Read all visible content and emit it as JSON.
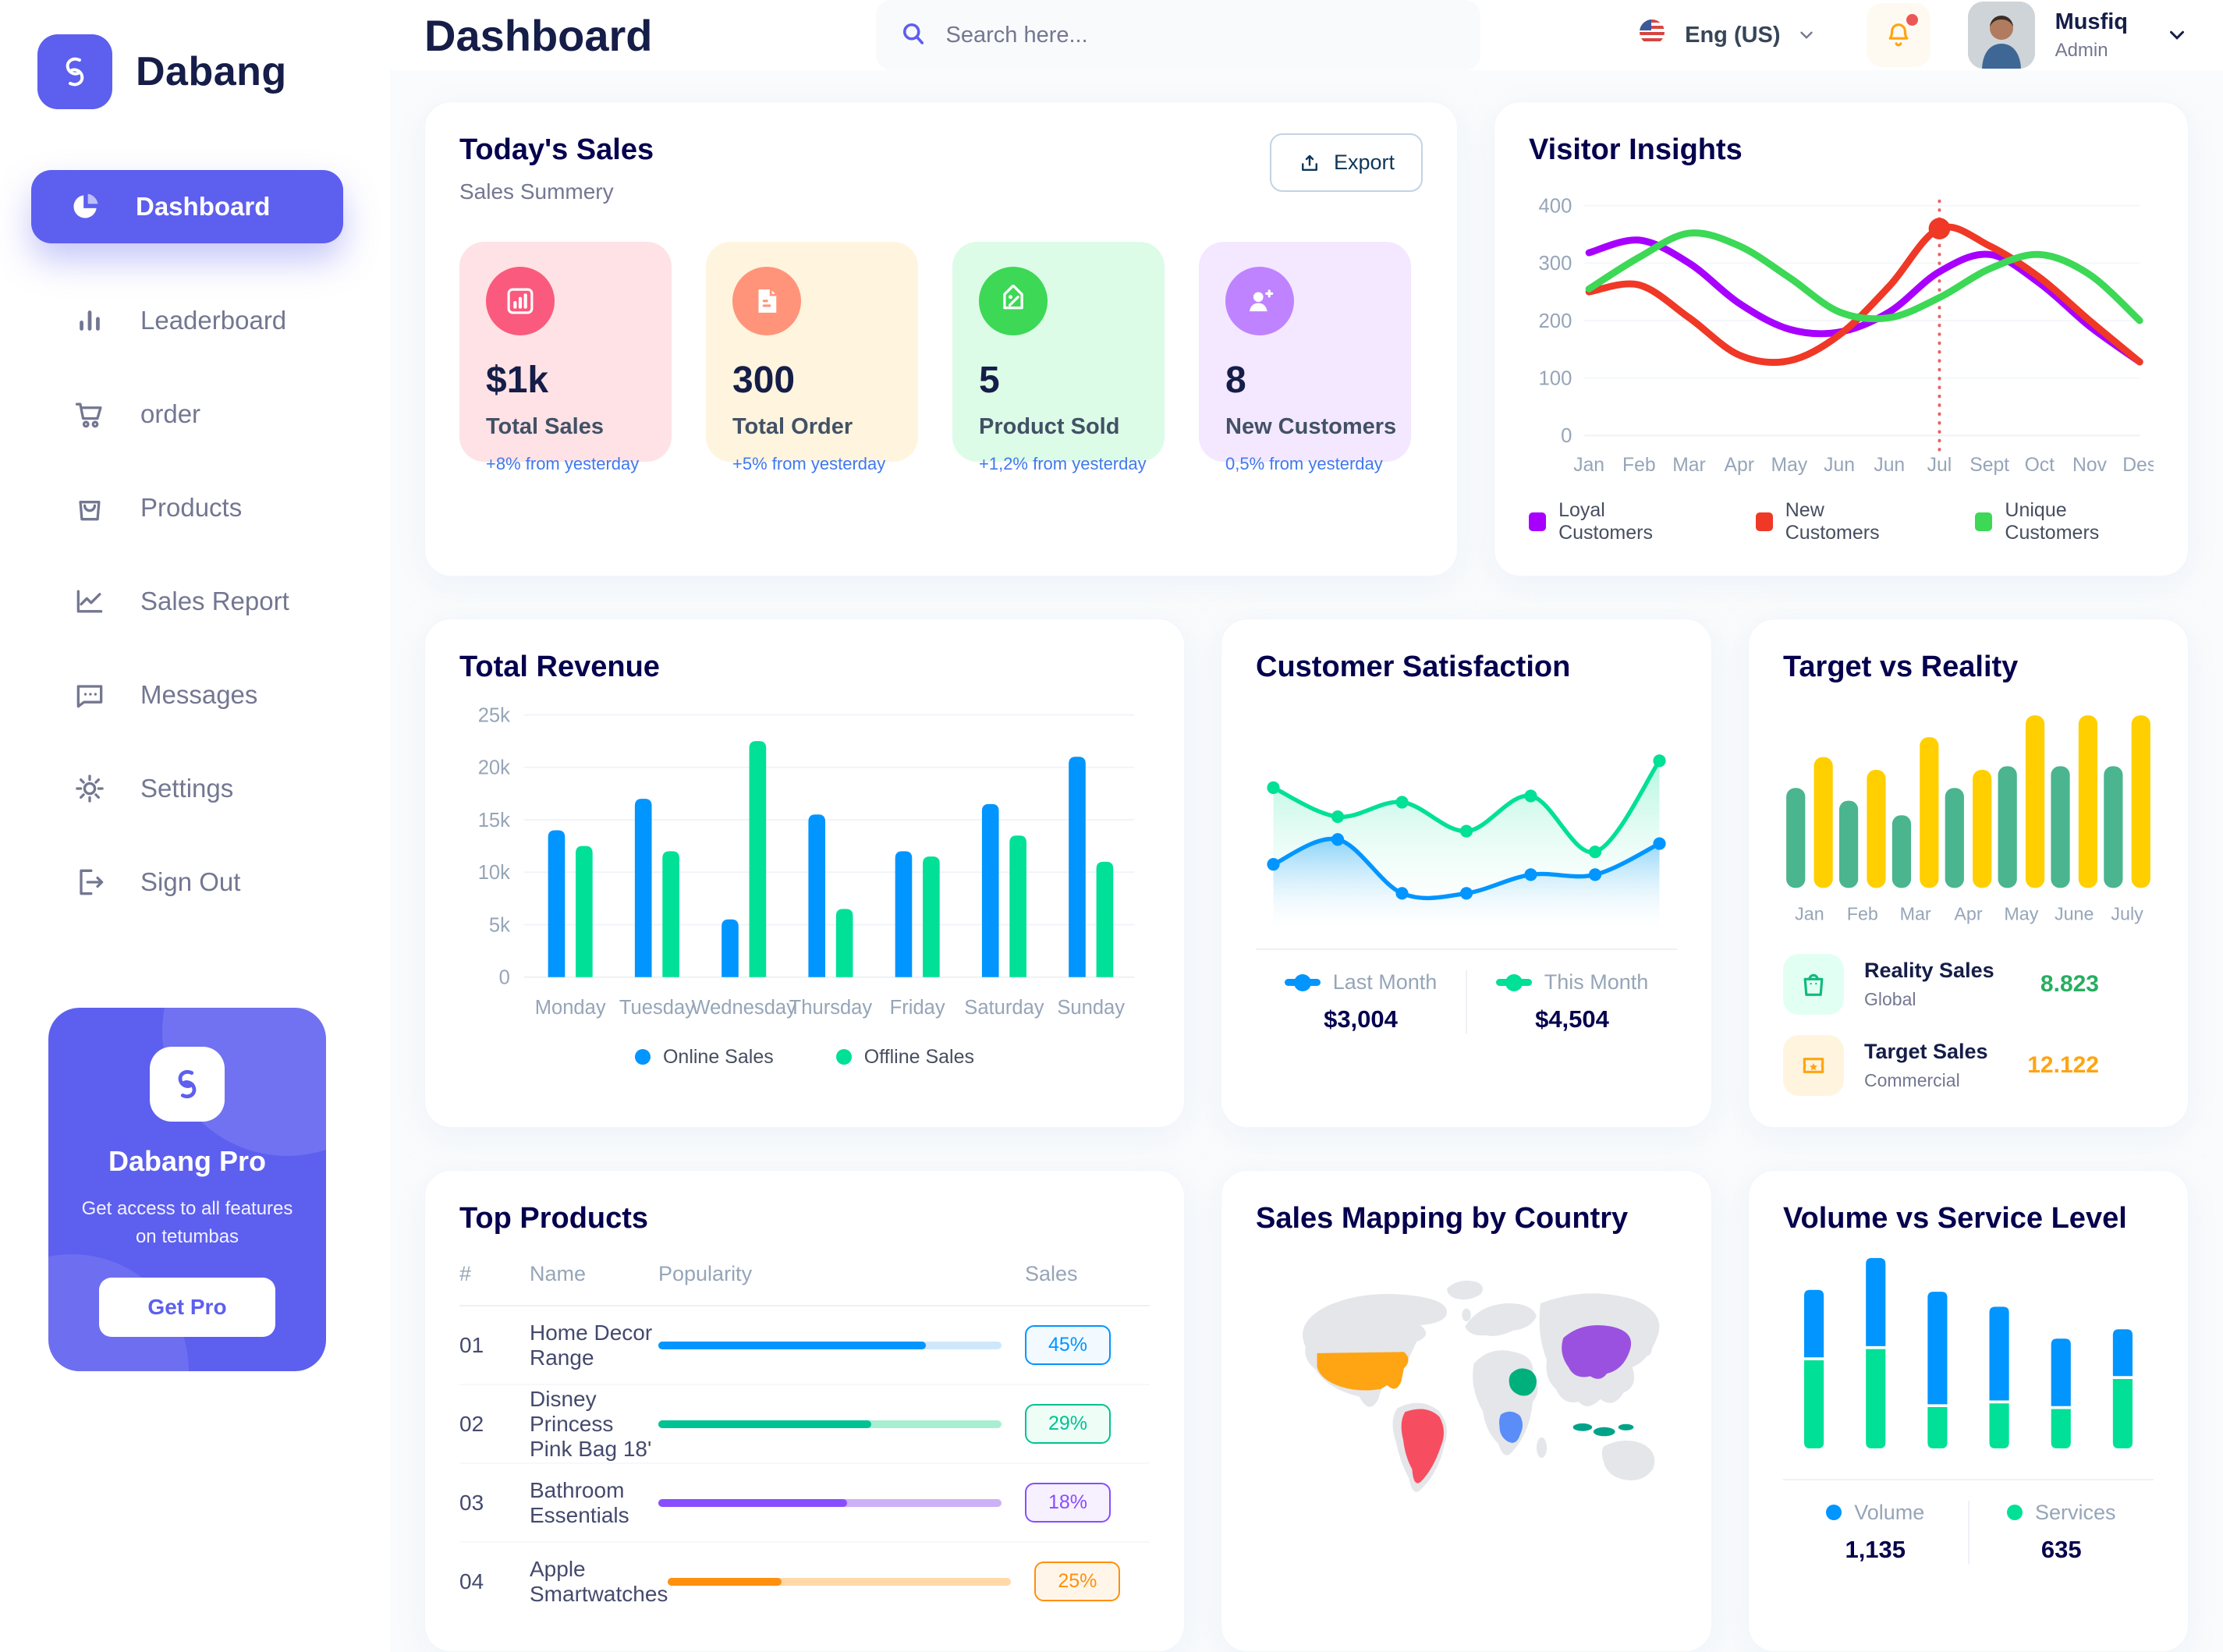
{
  "header": {
    "title": "Dashboard",
    "search_placeholder": "Search here...",
    "language": "Eng (US)",
    "user_name": "Musfiq",
    "user_role": "Admin"
  },
  "sidebar": {
    "brand": "Dabang",
    "items": [
      {
        "label": "Dashboard",
        "icon": "pie-chart",
        "active": true
      },
      {
        "label": "Leaderboard",
        "icon": "bar-chart",
        "active": false
      },
      {
        "label": "order",
        "icon": "cart",
        "active": false
      },
      {
        "label": "Products",
        "icon": "bag",
        "active": false
      },
      {
        "label": "Sales Report",
        "icon": "line-chart",
        "active": false
      },
      {
        "label": "Messages",
        "icon": "chat",
        "active": false
      },
      {
        "label": "Settings",
        "icon": "gear",
        "active": false
      },
      {
        "label": "Sign Out",
        "icon": "sign-out",
        "active": false
      }
    ],
    "pro": {
      "title": "Dabang Pro",
      "text": "Get access to all features on tetumbas",
      "button": "Get Pro"
    }
  },
  "todays_sales": {
    "title": "Today's Sales",
    "subtitle": "Sales Summery",
    "export_label": "Export",
    "cards": [
      {
        "value": "$1k",
        "label": "Total Sales",
        "change": "+8% from yesterday",
        "bg": "#ffe2e5",
        "icon_bg": "#fa5a7d",
        "icon": "bar-stats-icon"
      },
      {
        "value": "300",
        "label": "Total Order",
        "change": "+5% from yesterday",
        "bg": "#fff4de",
        "icon_bg": "#ff947a",
        "icon": "document-icon"
      },
      {
        "value": "5",
        "label": "Product Sold",
        "change": "+1,2% from yesterday",
        "bg": "#dcfce7",
        "icon_bg": "#3cd856",
        "icon": "tag-icon"
      },
      {
        "value": "8",
        "label": "New Customers",
        "change": "0,5% from yesterday",
        "bg": "#f3e8ff",
        "icon_bg": "#bf83ff",
        "icon": "user-plus-icon"
      }
    ]
  },
  "target_details": {
    "rows": [
      {
        "label": "Reality Sales",
        "sub": "Global",
        "value": "8.823",
        "color": "#27ae60",
        "icon_bg": "#e2fff3",
        "icon": "bag-icon"
      },
      {
        "label": "Target Sales",
        "sub": "Commercial",
        "value": "12.122",
        "color": "#ffa412",
        "icon_bg": "#fff4de",
        "icon": "ticket-icon"
      }
    ]
  },
  "top_products": {
    "title": "Top Products",
    "columns": [
      "#",
      "Name",
      "Popularity",
      "Sales"
    ],
    "rows": [
      {
        "num": "01",
        "name": "Home Decor Range",
        "popularity": 78,
        "sales": "45%",
        "color": "#0095ff",
        "track": "#cfe7fb",
        "badge_bg": "#f2f9ff"
      },
      {
        "num": "02",
        "name": "Disney Princess Pink Bag 18'",
        "popularity": 62,
        "sales": "29%",
        "color": "#00c292",
        "track": "#a8efd2",
        "badge_bg": "#effdf7"
      },
      {
        "num": "03",
        "name": "Bathroom Essentials",
        "popularity": 55,
        "sales": "18%",
        "color": "#884dff",
        "track": "#cbb1f7",
        "badge_bg": "#f7f1ff"
      },
      {
        "num": "04",
        "name": "Apple Smartwatches",
        "popularity": 33,
        "sales": "25%",
        "color": "#ff8f0d",
        "track": "#ffd9a8",
        "badge_bg": "#fff6e9"
      }
    ]
  },
  "chart_data": [
    {
      "id": "visitor-insights",
      "type": "line",
      "title": "Visitor Insights",
      "x": [
        "Jan",
        "Feb",
        "Mar",
        "Apr",
        "May",
        "Jun",
        "Jun",
        "Jul",
        "Sept",
        "Oct",
        "Nov",
        "Des"
      ],
      "ylim": [
        0,
        400
      ],
      "yticks": [
        0,
        100,
        200,
        300,
        400
      ],
      "grid": true,
      "legend_position": "bottom",
      "series": [
        {
          "name": "Loyal Customers",
          "color": "#a700ff",
          "values": [
            318,
            340,
            300,
            230,
            185,
            180,
            215,
            285,
            315,
            265,
            190,
            128
          ]
        },
        {
          "name": "New Customers",
          "color": "#ef3826",
          "values": [
            250,
            262,
            205,
            140,
            130,
            175,
            260,
            360,
            330,
            275,
            200,
            128
          ]
        },
        {
          "name": "Unique Customers",
          "color": "#3cd856",
          "values": [
            255,
            310,
            352,
            330,
            275,
            215,
            205,
            240,
            290,
            315,
            280,
            200
          ]
        }
      ],
      "marker": {
        "series": 1,
        "index": 7,
        "note": "red dot with dashed vertical line at Jul"
      }
    },
    {
      "id": "total-revenue",
      "type": "bar",
      "title": "Total Revenue",
      "categories": [
        "Monday",
        "Tuesday",
        "Wednesday",
        "Thursday",
        "Friday",
        "Saturday",
        "Sunday"
      ],
      "ylim": [
        0,
        25000
      ],
      "yticks": [
        0,
        5000,
        10000,
        15000,
        20000,
        25000
      ],
      "ytick_labels": [
        "0",
        "5k",
        "10k",
        "15k",
        "20k",
        "25k"
      ],
      "grid": true,
      "legend_position": "bottom",
      "series": [
        {
          "name": "Online Sales",
          "color": "#0095ff",
          "values": [
            14000,
            17000,
            5500,
            15500,
            12000,
            16500,
            21000
          ]
        },
        {
          "name": "Offline Sales",
          "color": "#00e096",
          "values": [
            12500,
            12000,
            22500,
            6500,
            11500,
            13500,
            11000
          ]
        }
      ]
    },
    {
      "id": "customer-satisfaction",
      "type": "area",
      "title": "Customer Satisfaction",
      "x": [
        1,
        2,
        3,
        4,
        5,
        6,
        7
      ],
      "ylim": [
        0,
        100
      ],
      "grid": false,
      "legend_position": "bottom",
      "series": [
        {
          "name": "Last Month",
          "color": "#0095ff",
          "total": "$3,004",
          "values": [
            25,
            37,
            11,
            11,
            20,
            20,
            35
          ]
        },
        {
          "name": "This Month",
          "color": "#00e096",
          "total": "$4,504",
          "values": [
            62,
            48,
            55,
            41,
            58,
            31,
            75
          ]
        }
      ]
    },
    {
      "id": "target-vs-reality",
      "type": "bar",
      "title": "Target vs Reality",
      "categories": [
        "Jan",
        "Feb",
        "Mar",
        "Apr",
        "May",
        "June",
        "July"
      ],
      "ylim": [
        0,
        100
      ],
      "grid": false,
      "legend_position": "none",
      "series": [
        {
          "name": "Reality Sales",
          "color": "#4ab58e",
          "values": [
            55,
            48,
            40,
            55,
            67,
            67,
            67
          ]
        },
        {
          "name": "Target Sales",
          "color": "#ffcf00",
          "values": [
            72,
            65,
            83,
            65,
            95,
            95,
            95
          ]
        }
      ]
    },
    {
      "id": "volume-vs-service",
      "type": "stacked-bar",
      "title": "Volume vs Service Level",
      "categories": [
        "1",
        "2",
        "3",
        "4",
        "5",
        "6"
      ],
      "ylim": [
        0,
        100
      ],
      "grid": false,
      "legend_position": "bottom",
      "series": [
        {
          "name": "Services",
          "color": "#00e096",
          "values": [
            47,
            53,
            22,
            24,
            21,
            37
          ]
        },
        {
          "name": "Volume",
          "color": "#0095ff",
          "values": [
            36,
            47,
            60,
            50,
            36,
            25
          ]
        }
      ],
      "totals": {
        "volume": "1,135",
        "services": "635"
      }
    },
    {
      "id": "sales-mapping",
      "type": "map",
      "title": "Sales Mapping by Country",
      "countries": [
        {
          "key": "usa",
          "name": "United States",
          "color": "#ffa412"
        },
        {
          "key": "brazil",
          "name": "Brazil",
          "color": "#f64e60"
        },
        {
          "key": "saudi",
          "name": "Saudi Arabia",
          "color": "#00b07c"
        },
        {
          "key": "congo",
          "name": "DR Congo",
          "color": "#5a8df7"
        },
        {
          "key": "china",
          "name": "China",
          "color": "#9b51e0"
        },
        {
          "key": "indonesia",
          "name": "Indonesia",
          "color": "#00a389"
        }
      ]
    }
  ]
}
